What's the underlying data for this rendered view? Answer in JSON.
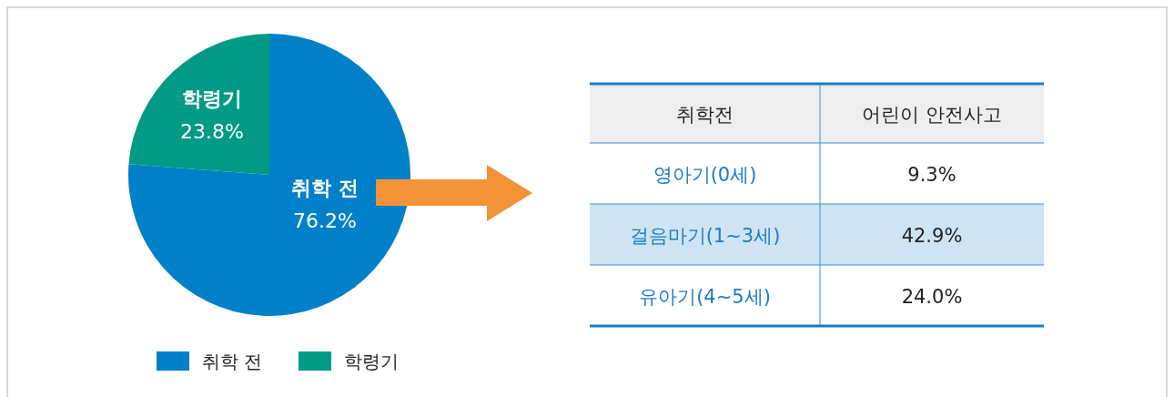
{
  "chart_data": [
    {
      "type": "pie",
      "categories": [
        "취학 전",
        "학령기"
      ],
      "values": [
        76.2,
        23.8
      ],
      "colors": [
        "#0080c8",
        "#009a85"
      ],
      "value_labels": [
        "76.2%",
        "23.8%"
      ],
      "legend": "bottom"
    },
    {
      "type": "other",
      "annotations": [
        "취학전",
        "어린이 안전사고"
      ],
      "categories": [
        "영아기(0세)",
        "걸음마기(1~3세)",
        "유아기(4~5세)"
      ],
      "value_labels": [
        "9.3%",
        "42.9%",
        "24.0%"
      ],
      "colors": [
        "#ffffff",
        "#cfe4f2",
        "#ffffff"
      ]
    }
  ]
}
